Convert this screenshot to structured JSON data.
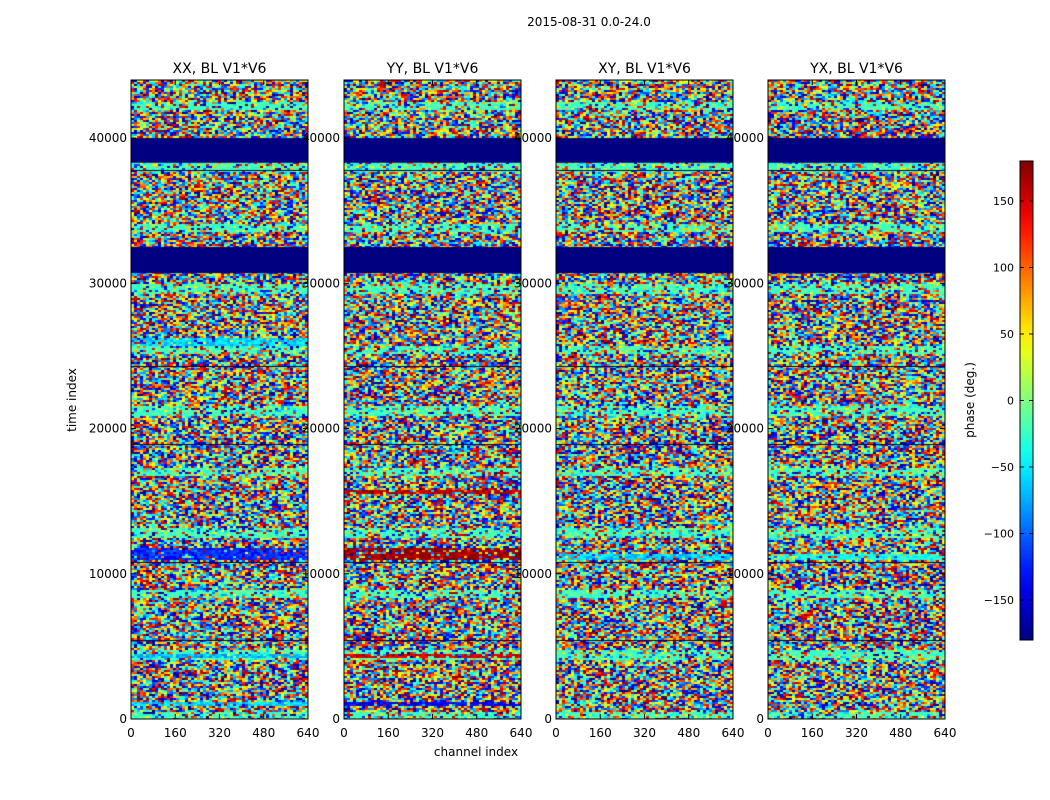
{
  "chart_data": {
    "type": "heatmap",
    "suptitle": "2015-08-31 0.0-24.0",
    "xlabel": "channel index",
    "ylabel": "time index",
    "xlim": [
      0,
      640
    ],
    "ylim": [
      0,
      44000
    ],
    "xticks": [
      0,
      160,
      320,
      480,
      640
    ],
    "yticks": [
      0,
      10000,
      20000,
      30000,
      40000
    ],
    "colormap": "jet",
    "colorbar": {
      "label": "phase (deg.)",
      "vmin": -180,
      "vmax": 180,
      "ticks": [
        -150,
        -100,
        -50,
        0,
        50,
        100,
        150
      ],
      "tick_labels": [
        "−150",
        "−100",
        "−50",
        "0",
        "50",
        "100",
        "150"
      ]
    },
    "panels": [
      {
        "title": "XX, BL V1*V6",
        "masked_time_ranges": [
          [
            38300,
            40000
          ],
          [
            30700,
            32500
          ]
        ],
        "bands": [
          [
            11000,
            11800,
            -120
          ],
          [
            900,
            1200,
            -60
          ],
          [
            4300,
            4500,
            -70
          ],
          [
            25800,
            26300,
            -60
          ]
        ]
      },
      {
        "title": "YY, BL V1*V6",
        "masked_time_ranges": [
          [
            38300,
            40000
          ],
          [
            30700,
            32500
          ]
        ],
        "bands": [
          [
            11000,
            11800,
            170
          ],
          [
            900,
            1300,
            -140
          ],
          [
            4300,
            4600,
            150
          ],
          [
            15600,
            15900,
            160
          ]
        ]
      },
      {
        "title": "XY, BL V1*V6",
        "masked_time_ranges": [
          [
            38300,
            40000
          ],
          [
            30700,
            32500
          ]
        ],
        "bands": [
          [
            11000,
            11400,
            -60
          ]
        ]
      },
      {
        "title": "YX, BL V1*V6",
        "masked_time_ranges": [
          [
            38300,
            40000
          ],
          [
            30700,
            32500
          ]
        ],
        "bands": [
          [
            11000,
            11400,
            -40
          ]
        ]
      }
    ]
  }
}
